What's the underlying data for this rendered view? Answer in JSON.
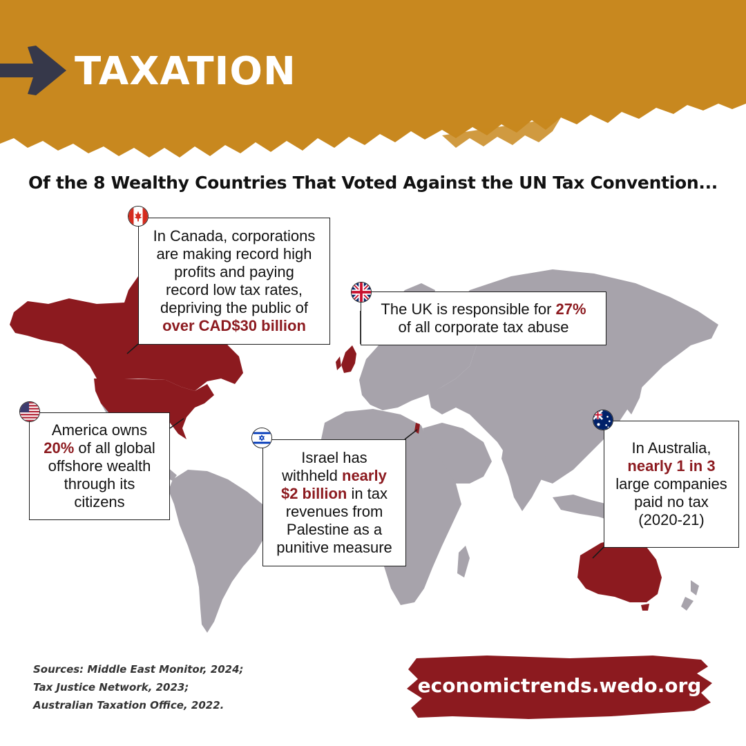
{
  "header": {
    "title": "TAXATION",
    "arrow_icon": "arrow-right-icon",
    "band_color": "#C8881F"
  },
  "subtitle": "Of the 8 Wealthy Countries That Voted Against the UN Tax Convention...",
  "colors": {
    "highlight": "#8C1A1F",
    "land": "#A7A3AB",
    "country_highlight": "#8C1A1F"
  },
  "map": {
    "highlighted_countries": [
      "Canada",
      "United States",
      "United Kingdom",
      "Israel",
      "Australia"
    ],
    "callouts": {
      "canada": {
        "flag": "canada-flag-icon",
        "lines": [
          "In Canada, corporations",
          "are making record high",
          "profits and paying",
          "record low tax rates,",
          "depriving the public of"
        ],
        "highlight": "over CAD$30 billion"
      },
      "uk": {
        "flag": "uk-flag-icon",
        "line1_pre": "The UK is responsible for ",
        "line1_highlight": "27%",
        "line2": "of all corporate tax abuse"
      },
      "usa": {
        "flag": "usa-flag-icon",
        "line1": "America owns",
        "line2_highlight": "20%",
        "line2_post": " of all global",
        "line3": "offshore wealth",
        "line4": "through its",
        "line5": "citizens"
      },
      "israel": {
        "flag": "israel-flag-icon",
        "line1": "Israel has",
        "line2_pre": "withheld ",
        "line2_highlight": "nearly",
        "line3_highlight": "$2 billion",
        "line3_post": " in tax",
        "line4": "revenues from",
        "line5": "Palestine as a",
        "line6": "punitive measure"
      },
      "australia": {
        "flag": "australia-flag-icon",
        "line1": "In Australia,",
        "line2_highlight": "nearly 1 in 3",
        "line3": "large companies",
        "line4": "paid no tax",
        "line5": "(2020-21)"
      }
    }
  },
  "sources": {
    "line1": "Sources: Middle East Monitor, 2024;",
    "line2": "Tax Justice Network, 2023;",
    "line3": "Australian Taxation Office, 2022."
  },
  "footer": {
    "url": "economictrends.wedo.org"
  }
}
